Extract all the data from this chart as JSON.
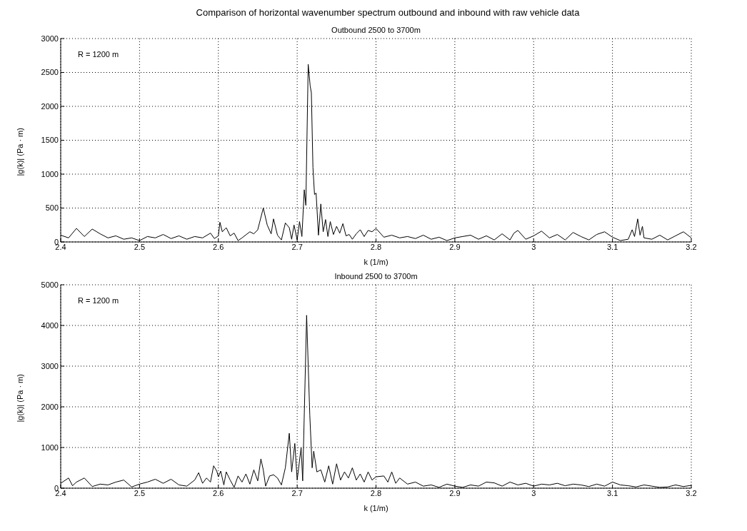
{
  "chart_data": [
    {
      "type": "line",
      "title": "Outbound 2500 to 3700m",
      "xlabel": "k (1/m)",
      "ylabel": "|g(k)| (Pa · m)",
      "annotations": [
        "Comparison of horizontal wavenumber spectrum outbound and inbound with raw vehicle data",
        "R = 1200 m"
      ],
      "xlim": [
        2.4,
        3.2
      ],
      "xticks": [
        2.4,
        2.5,
        2.6,
        2.7,
        2.8,
        2.9,
        3,
        3.1,
        3.2
      ],
      "ylim": [
        0,
        3000
      ],
      "yticks": [
        0,
        500,
        1000,
        1500,
        2000,
        2500,
        3000
      ],
      "grid": true,
      "line_style": "solid",
      "series": [
        {
          "color": "#000000",
          "x": [
            2.4,
            2.41,
            2.42,
            2.43,
            2.44,
            2.45,
            2.46,
            2.47,
            2.48,
            2.49,
            2.5,
            2.51,
            2.52,
            2.53,
            2.54,
            2.55,
            2.56,
            2.57,
            2.58,
            2.59,
            2.595,
            2.6,
            2.602,
            2.605,
            2.61,
            2.615,
            2.62,
            2.625,
            2.63,
            2.64,
            2.645,
            2.65,
            2.657,
            2.662,
            2.667,
            2.67,
            2.675,
            2.68,
            2.685,
            2.69,
            2.693,
            2.696,
            2.7,
            2.703,
            2.706,
            2.709,
            2.711,
            2.714,
            2.7165,
            2.718,
            2.72,
            2.722,
            2.724,
            2.727,
            2.73,
            2.733,
            2.736,
            2.739,
            2.742,
            2.746,
            2.75,
            2.754,
            2.758,
            2.762,
            2.766,
            2.77,
            2.775,
            2.78,
            2.785,
            2.79,
            2.795,
            2.8,
            2.81,
            2.82,
            2.83,
            2.84,
            2.85,
            2.86,
            2.87,
            2.88,
            2.89,
            2.9,
            2.91,
            2.92,
            2.93,
            2.94,
            2.95,
            2.96,
            2.97,
            2.975,
            2.98,
            2.99,
            3.0,
            3.01,
            3.02,
            3.03,
            3.04,
            3.05,
            3.06,
            3.07,
            3.08,
            3.09,
            3.1,
            3.11,
            3.12,
            3.125,
            3.128,
            3.132,
            3.135,
            3.138,
            3.14,
            3.15,
            3.16,
            3.17,
            3.18,
            3.19,
            3.2
          ],
          "values": [
            100,
            60,
            200,
            80,
            190,
            120,
            60,
            90,
            40,
            60,
            20,
            80,
            60,
            110,
            50,
            90,
            40,
            80,
            60,
            130,
            50,
            90,
            290,
            150,
            210,
            90,
            130,
            20,
            60,
            150,
            120,
            180,
            500,
            250,
            120,
            340,
            100,
            30,
            280,
            210,
            40,
            250,
            30,
            300,
            80,
            770,
            540,
            2620,
            2300,
            2200,
            1100,
            700,
            720,
            100,
            560,
            150,
            330,
            80,
            300,
            110,
            230,
            130,
            270,
            90,
            110,
            40,
            120,
            180,
            80,
            170,
            150,
            200,
            70,
            100,
            60,
            80,
            50,
            100,
            40,
            70,
            20,
            60,
            80,
            100,
            40,
            90,
            30,
            120,
            30,
            130,
            170,
            40,
            90,
            160,
            60,
            110,
            30,
            140,
            80,
            30,
            110,
            150,
            70,
            20,
            40,
            180,
            80,
            340,
            100,
            230,
            60,
            40,
            100,
            30,
            90,
            150,
            60
          ]
        }
      ]
    },
    {
      "type": "line",
      "title": "Inbound 2500 to 3700m",
      "xlabel": "k (1/m)",
      "ylabel": "|g(k)| (Pa · m)",
      "annotations": [
        "R = 1200 m"
      ],
      "xlim": [
        2.4,
        3.2
      ],
      "xticks": [
        2.4,
        2.5,
        2.6,
        2.7,
        2.8,
        2.9,
        3,
        3.1,
        3.2
      ],
      "ylim": [
        0,
        5000
      ],
      "yticks": [
        0,
        1000,
        2000,
        3000,
        4000,
        5000
      ],
      "grid": true,
      "line_style": "solid",
      "series": [
        {
          "color": "#000000",
          "x": [
            2.4,
            2.41,
            2.415,
            2.42,
            2.43,
            2.44,
            2.45,
            2.46,
            2.47,
            2.48,
            2.49,
            2.5,
            2.51,
            2.52,
            2.53,
            2.54,
            2.55,
            2.56,
            2.57,
            2.575,
            2.58,
            2.585,
            2.59,
            2.594,
            2.598,
            2.6,
            2.603,
            2.607,
            2.61,
            2.615,
            2.62,
            2.625,
            2.63,
            2.635,
            2.64,
            2.645,
            2.65,
            2.654,
            2.657,
            2.66,
            2.665,
            2.67,
            2.675,
            2.68,
            2.685,
            2.69,
            2.693,
            2.697,
            2.7,
            2.705,
            2.707,
            2.712,
            2.716,
            2.719,
            2.721,
            2.725,
            2.73,
            2.735,
            2.74,
            2.745,
            2.75,
            2.755,
            2.76,
            2.765,
            2.77,
            2.775,
            2.78,
            2.785,
            2.79,
            2.795,
            2.8,
            2.81,
            2.815,
            2.82,
            2.825,
            2.83,
            2.84,
            2.85,
            2.86,
            2.87,
            2.88,
            2.89,
            2.9,
            2.91,
            2.92,
            2.93,
            2.94,
            2.95,
            2.96,
            2.97,
            2.98,
            2.99,
            3.0,
            3.01,
            3.02,
            3.03,
            3.04,
            3.05,
            3.06,
            3.07,
            3.08,
            3.09,
            3.1,
            3.11,
            3.12,
            3.13,
            3.14,
            3.15,
            3.16,
            3.17,
            3.18,
            3.19,
            3.2
          ],
          "values": [
            120,
            250,
            60,
            150,
            250,
            40,
            100,
            80,
            150,
            200,
            30,
            100,
            150,
            220,
            120,
            220,
            80,
            50,
            200,
            380,
            120,
            250,
            150,
            550,
            420,
            280,
            420,
            80,
            400,
            200,
            20,
            300,
            150,
            350,
            100,
            450,
            180,
            720,
            450,
            50,
            300,
            330,
            250,
            80,
            500,
            1350,
            400,
            1100,
            200,
            1000,
            180,
            4250,
            1800,
            500,
            910,
            400,
            450,
            150,
            550,
            100,
            600,
            200,
            400,
            250,
            500,
            200,
            350,
            150,
            400,
            200,
            280,
            300,
            150,
            400,
            120,
            250,
            100,
            150,
            50,
            80,
            20,
            100,
            50,
            20,
            80,
            50,
            150,
            130,
            50,
            150,
            80,
            120,
            50,
            100,
            80,
            120,
            60,
            100,
            80,
            40,
            100,
            50,
            150,
            80,
            60,
            30,
            80,
            50,
            20,
            30,
            80,
            40,
            70
          ]
        }
      ]
    }
  ]
}
